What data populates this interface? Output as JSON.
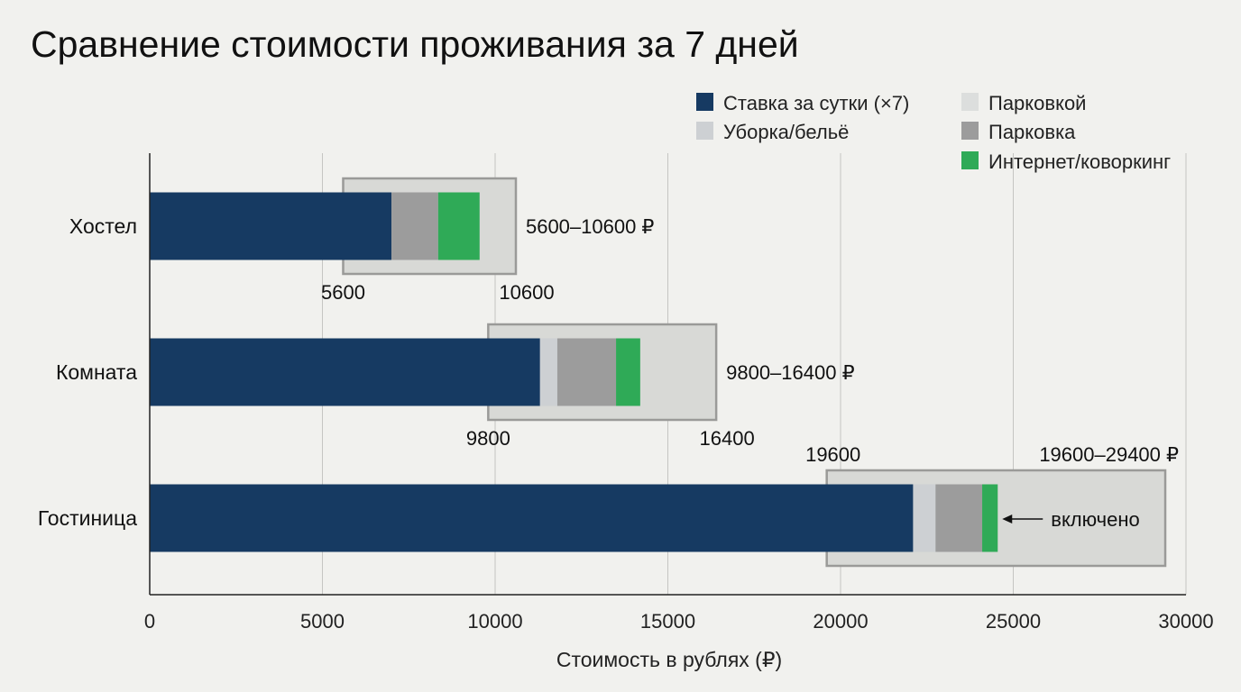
{
  "chart_data": {
    "type": "bar",
    "orientation": "horizontal",
    "stacked": true,
    "title": "Сравнение стоимости проживания за 7 дней",
    "xlabel": "Стоимость в рублях (₽)",
    "ylabel": "",
    "xlim": [
      0,
      30000
    ],
    "xticks": [
      0,
      5000,
      10000,
      15000,
      20000,
      25000,
      30000
    ],
    "xtick_labels": [
      "0",
      "5000",
      "10000",
      "15000",
      "20000",
      "25000",
      "30000"
    ],
    "grid": "vertical",
    "legend_position": "top-right",
    "categories": [
      "Хостел",
      "Комната",
      "Гостиница"
    ],
    "series": [
      {
        "name": "Ставка за сутки (×7)",
        "color": "#163a62",
        "values": [
          7000,
          11300,
          22100
        ]
      },
      {
        "name": "Уборка/бельё",
        "color": "#cdd0d3",
        "values": [
          0,
          500,
          650
        ]
      },
      {
        "name": "Парковкой",
        "color": "#dcdedd",
        "values": [
          0,
          0,
          0
        ]
      },
      {
        "name": "Парковка",
        "color": "#9c9c9c",
        "values": [
          1350,
          1700,
          1350
        ]
      },
      {
        "name": "Интернет/коворкинг",
        "color": "#2faa57",
        "values": [
          1200,
          700,
          450
        ]
      }
    ],
    "ranges": [
      {
        "category": "Хостел",
        "min": 5600,
        "max": 10600,
        "label": "5600–10600 ₽",
        "min_label": "5600",
        "max_label": "10600"
      },
      {
        "category": "Комната",
        "min": 9800,
        "max": 16400,
        "label": "9800–16400 ₽",
        "min_label": "9800",
        "max_label": "16400"
      },
      {
        "category": "Гостиница",
        "min": 19600,
        "max": 29400,
        "label": "19600–29400 ₽",
        "min_label": "19600",
        "max_label": ""
      }
    ],
    "annotations": [
      {
        "category": "Гостиница",
        "text": "включено",
        "points_to": "Интернет/коворкинг"
      }
    ],
    "range_box_color": "#d8d9d6",
    "range_box_border": "#9a9a98"
  }
}
